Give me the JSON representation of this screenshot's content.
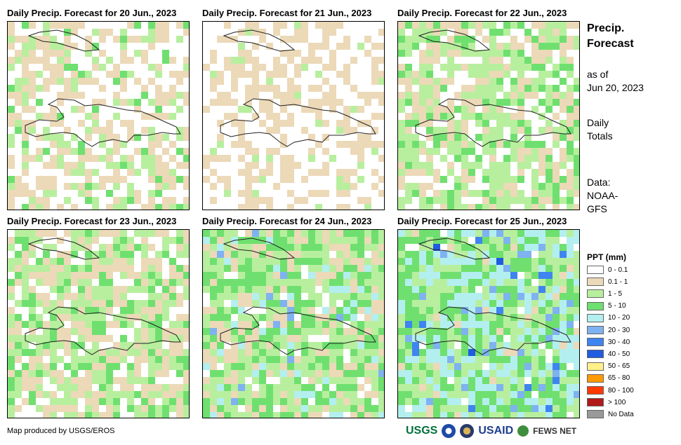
{
  "panels": [
    {
      "title": "Daily Precip. Forecast for 20 Jun., 2023",
      "seed": 1,
      "profile": "dry"
    },
    {
      "title": "Daily Precip. Forecast for 21 Jun., 2023",
      "seed": 2,
      "profile": "verydry"
    },
    {
      "title": "Daily Precip. Forecast for 22 Jun., 2023",
      "seed": 3,
      "profile": "moist"
    },
    {
      "title": "Daily Precip. Forecast for 23 Jun., 2023",
      "seed": 4,
      "profile": "moist"
    },
    {
      "title": "Daily Precip. Forecast for 24 Jun., 2023",
      "seed": 5,
      "profile": "wet"
    },
    {
      "title": "Daily Precip. Forecast for 25 Jun., 2023",
      "seed": 6,
      "profile": "verywet"
    }
  ],
  "side": {
    "title_line1": "Precip.",
    "title_line2": "Forecast",
    "asof_line1": "as of",
    "asof_line2": "Jun 20, 2023",
    "totals_line1": "Daily",
    "totals_line2": "Totals",
    "data_line1": "Data:",
    "data_line2": "NOAA-",
    "data_line3": "GFS"
  },
  "legend": {
    "title": "PPT (mm)",
    "items": [
      {
        "label": "0 - 0.1",
        "color": "#ffffff"
      },
      {
        "label": "0.1 - 1",
        "color": "#ecd9b8"
      },
      {
        "label": "1 - 5",
        "color": "#b8ef9e"
      },
      {
        "label": "5 - 10",
        "color": "#6fe06f"
      },
      {
        "label": "10 - 20",
        "color": "#b3efef"
      },
      {
        "label": "20 - 30",
        "color": "#7fb2f0"
      },
      {
        "label": "30 - 40",
        "color": "#3f84f0"
      },
      {
        "label": "40 - 50",
        "color": "#1f5ce0"
      },
      {
        "label": "50 - 65",
        "color": "#fff08a"
      },
      {
        "label": "65 - 80",
        "color": "#ff9a00"
      },
      {
        "label": "80 - 100",
        "color": "#ff3a00"
      },
      {
        "label": "> 100",
        "color": "#b01a1a"
      },
      {
        "label": "No Data",
        "color": "#999999"
      }
    ]
  },
  "credit": "Map produced by USGS/EROS",
  "logos": {
    "usgs": "USGS",
    "usaid": "USAID",
    "fewsnet": "FEWS NET"
  }
}
